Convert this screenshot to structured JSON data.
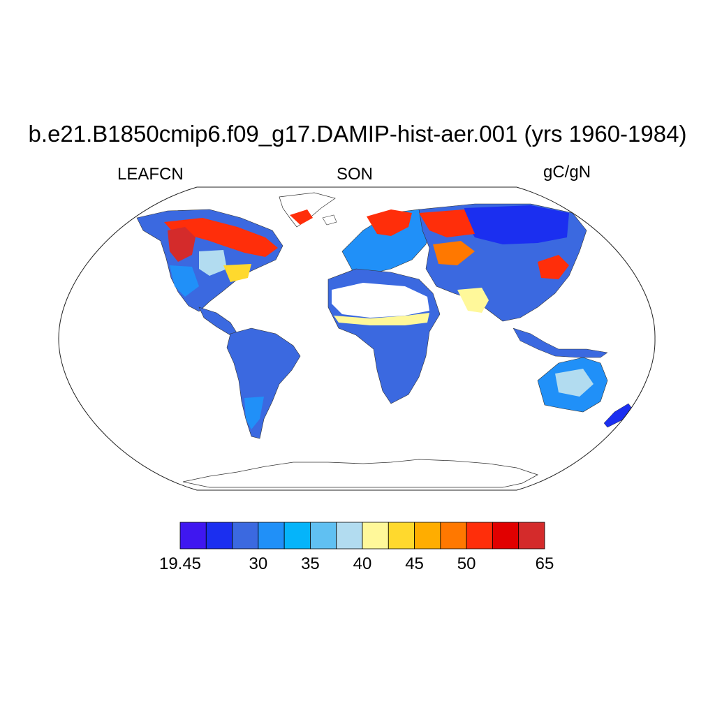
{
  "title": "b.e21.B1850cmip6.f09_g17.DAMIP-hist-aer.001 (yrs 1960-1984)",
  "left_string": "LEAFCN",
  "center_string": "SON",
  "right_string": "gC/gN",
  "colorbar": {
    "colors": [
      "#3f17f0",
      "#1b2ff0",
      "#3b69e0",
      "#2090f8",
      "#05b4fa",
      "#60c0f2",
      "#b2dcf0",
      "#fff89a",
      "#ffd92d",
      "#ffad00",
      "#ff7800",
      "#ff2e0a",
      "#e10000",
      "#d42b2b"
    ],
    "tick_labels": [
      "19.45",
      "30",
      "35",
      "40",
      "45",
      "50",
      "65"
    ],
    "tick_boundary_index": [
      0,
      3,
      5,
      7,
      9,
      11,
      14
    ]
  }
}
